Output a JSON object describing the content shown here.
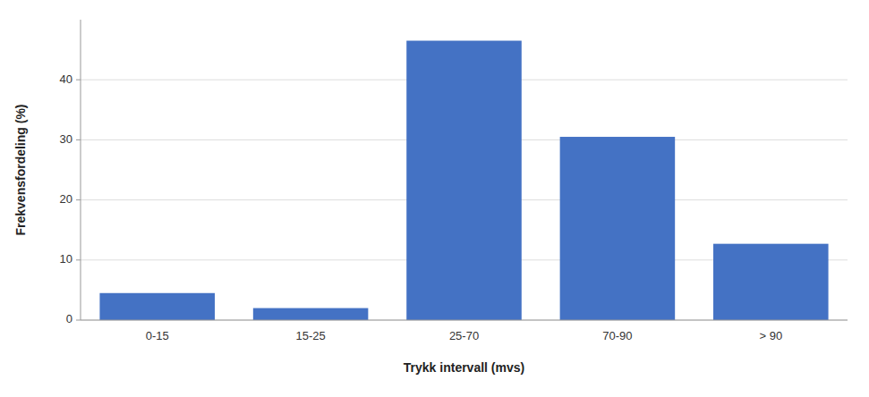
{
  "chart_data": {
    "type": "bar",
    "categories": [
      "0-15",
      "15-25",
      "25-70",
      "70-90",
      "> 90"
    ],
    "values": [
      4.5,
      2.0,
      46.5,
      30.5,
      12.7
    ],
    "color": "#4472C4",
    "xlabel": "Trykk intervall (mvs)",
    "ylabel": "Frekvensfordeling (%)",
    "ylim": [
      0,
      50
    ],
    "yticks": [
      0,
      10,
      20,
      30,
      40
    ],
    "grid": true
  }
}
